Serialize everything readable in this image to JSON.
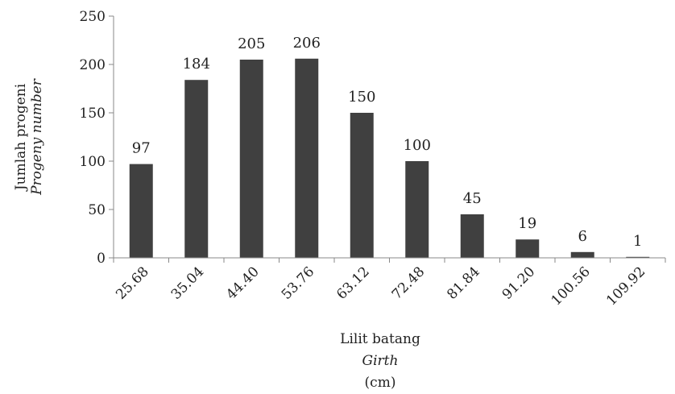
{
  "chart_data": {
    "type": "bar",
    "categories": [
      "25.68",
      "35.04",
      "44.40",
      "53.76",
      "63.12",
      "72.48",
      "81.84",
      "91.20",
      "100.56",
      "109.92"
    ],
    "values": [
      97,
      184,
      205,
      206,
      150,
      100,
      45,
      19,
      6,
      1
    ],
    "data_labels": [
      "97",
      "184",
      "205",
      "206",
      "150",
      "100",
      "45",
      "19",
      "6",
      "1"
    ],
    "ylim": [
      0,
      250
    ],
    "yticks": [
      "0",
      "50",
      "100",
      "150",
      "200",
      "250"
    ],
    "xlabel": {
      "line1": "Lilit batang",
      "line2": "Girth",
      "line3": "(cm)"
    },
    "ylabel": {
      "line1": "Jumlah  progeni",
      "line2": "Progeny number"
    },
    "grid": false,
    "legend": "none",
    "bar_color": "#404040"
  }
}
